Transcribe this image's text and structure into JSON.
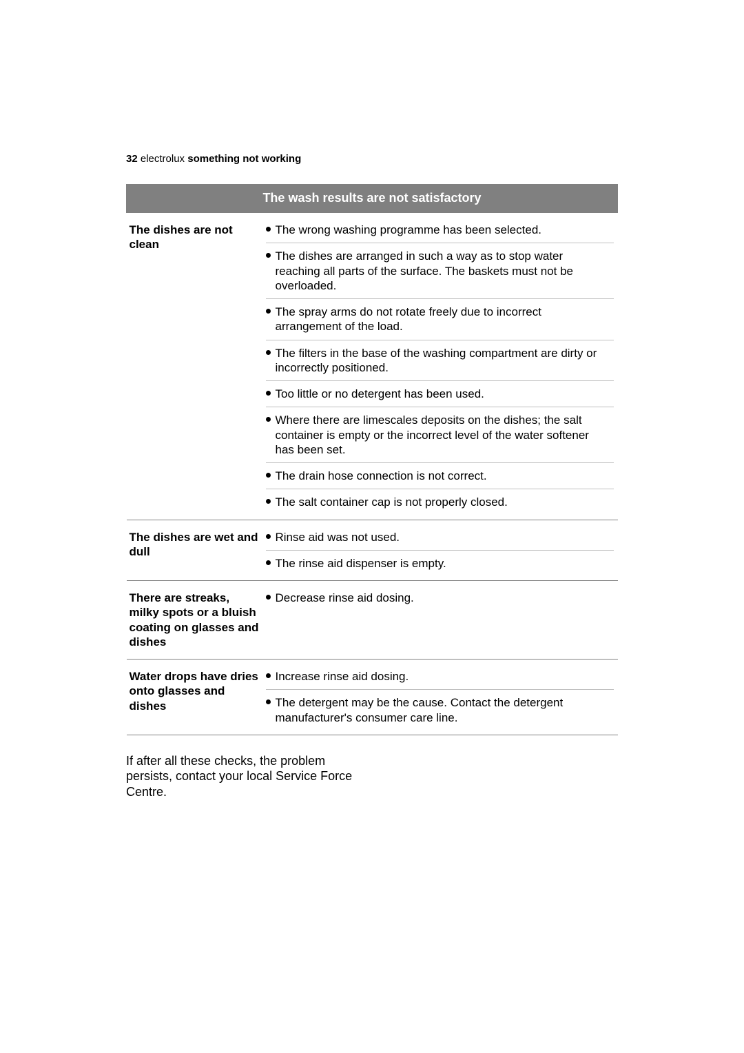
{
  "page": {
    "number": "32",
    "brand": "electrolux",
    "section": "something not working"
  },
  "table": {
    "header": "The wash results are not satisfactory",
    "rows": [
      {
        "problem": "The dishes are not clean",
        "causes": [
          "The wrong washing programme has been selected.",
          "The dishes are arranged in such a way as to stop water reaching all parts of the surface. The baskets must not be overloaded.",
          "The spray arms do not rotate freely due to incorrect arrangement of the load.",
          "The filters in the base of the washing compartment are dirty or incorrectly positioned.",
          "Too little or no detergent has been used.",
          "Where there are limescales deposits on the dishes; the salt container is empty or the incorrect level of the water softener has been set.",
          "The drain hose connection is not correct.",
          "The salt container cap is not properly closed."
        ]
      },
      {
        "problem": "The dishes are wet and dull",
        "causes": [
          "Rinse aid was not used.",
          "The rinse aid dispenser is empty."
        ]
      },
      {
        "problem": "There are streaks, milky spots or a bluish coating on glasses and dishes",
        "causes": [
          "Decrease rinse aid dosing."
        ]
      },
      {
        "problem": "Water drops have dries onto glasses and dishes",
        "causes": [
          "Increase rinse aid dosing.",
          "The detergent may be the cause. Contact the detergent manufacturer's consumer care line."
        ]
      }
    ]
  },
  "footerNote": "If after all these checks, the problem persists, contact your local Service Force Centre."
}
